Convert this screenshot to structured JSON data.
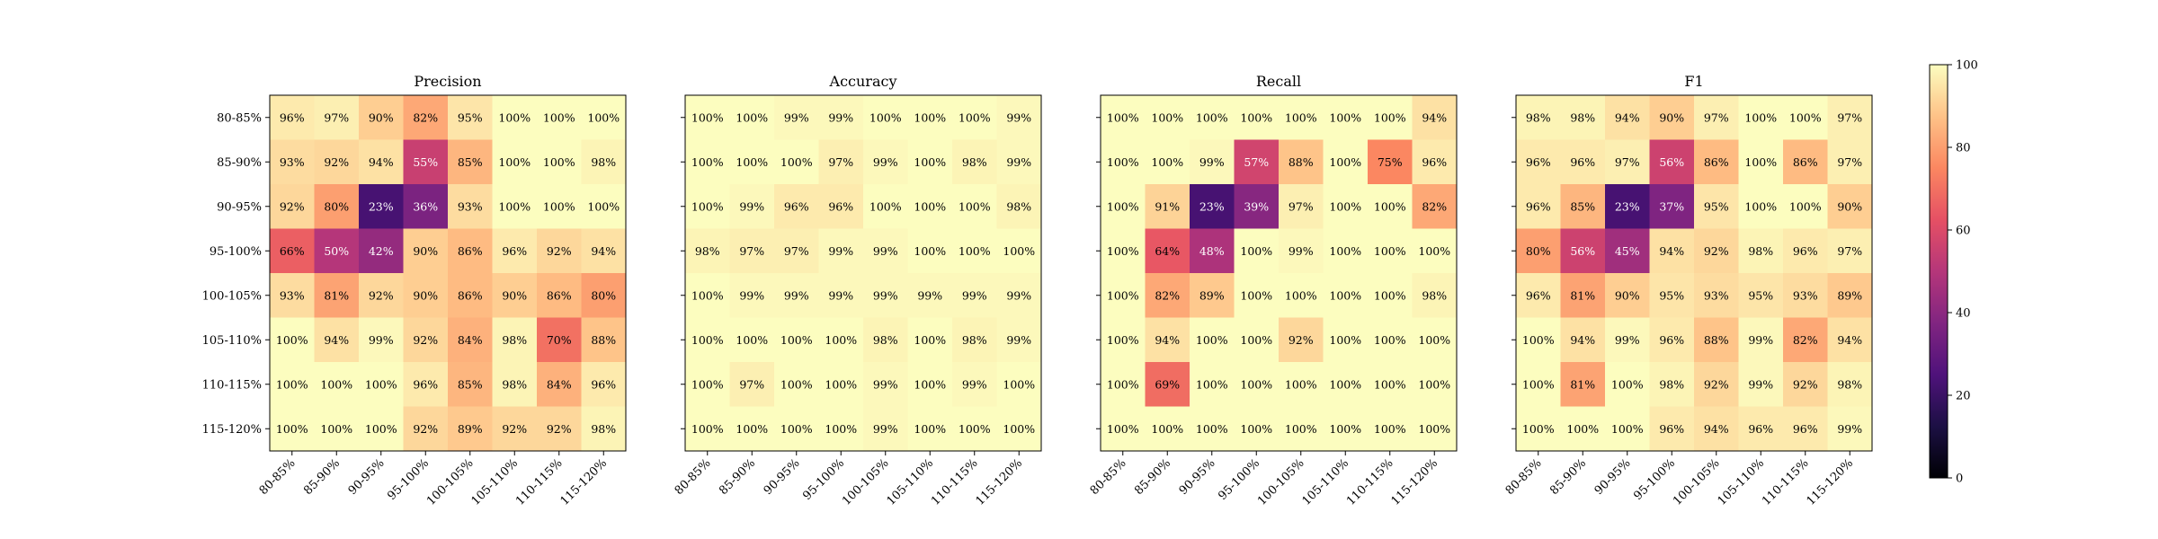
{
  "chart_data": {
    "type": "heatmap",
    "row_labels": [
      "80-85%",
      "85-90%",
      "90-95%",
      "95-100%",
      "100-105%",
      "105-110%",
      "110-115%",
      "115-120%"
    ],
    "col_labels": [
      "80-85%",
      "85-90%",
      "90-95%",
      "95-100%",
      "100-105%",
      "105-110%",
      "110-115%",
      "115-120%"
    ],
    "colormap": "magma",
    "value_range": [
      0,
      100
    ],
    "colorbar_ticks": [
      "0",
      "20",
      "40",
      "60",
      "80",
      "100"
    ],
    "panels": [
      {
        "title": "Precision",
        "values": [
          [
            96,
            97,
            90,
            82,
            95,
            100,
            100,
            100
          ],
          [
            93,
            92,
            94,
            55,
            85,
            100,
            100,
            98
          ],
          [
            92,
            80,
            23,
            36,
            93,
            100,
            100,
            100
          ],
          [
            66,
            50,
            42,
            90,
            86,
            96,
            92,
            94
          ],
          [
            93,
            81,
            92,
            90,
            86,
            90,
            86,
            80
          ],
          [
            100,
            94,
            99,
            92,
            84,
            98,
            70,
            88
          ],
          [
            100,
            100,
            100,
            96,
            85,
            98,
            84,
            96
          ],
          [
            100,
            100,
            100,
            92,
            89,
            92,
            92,
            98
          ]
        ]
      },
      {
        "title": "Accuracy",
        "values": [
          [
            100,
            100,
            99,
            99,
            100,
            100,
            100,
            99
          ],
          [
            100,
            100,
            100,
            97,
            99,
            100,
            98,
            99
          ],
          [
            100,
            99,
            96,
            96,
            100,
            100,
            100,
            98
          ],
          [
            98,
            97,
            97,
            99,
            99,
            100,
            100,
            100
          ],
          [
            100,
            99,
            99,
            99,
            99,
            99,
            99,
            99
          ],
          [
            100,
            100,
            100,
            100,
            98,
            100,
            98,
            99
          ],
          [
            100,
            97,
            100,
            100,
            99,
            100,
            99,
            100
          ],
          [
            100,
            100,
            100,
            100,
            99,
            100,
            100,
            100
          ]
        ]
      },
      {
        "title": "Recall",
        "values": [
          [
            100,
            100,
            100,
            100,
            100,
            100,
            100,
            94
          ],
          [
            100,
            100,
            99,
            57,
            88,
            100,
            75,
            96
          ],
          [
            100,
            91,
            23,
            39,
            97,
            100,
            100,
            82
          ],
          [
            100,
            64,
            48,
            100,
            99,
            100,
            100,
            100
          ],
          [
            100,
            82,
            89,
            100,
            100,
            100,
            100,
            98
          ],
          [
            100,
            94,
            100,
            100,
            92,
            100,
            100,
            100
          ],
          [
            100,
            69,
            100,
            100,
            100,
            100,
            100,
            100
          ],
          [
            100,
            100,
            100,
            100,
            100,
            100,
            100,
            100
          ]
        ]
      },
      {
        "title": "F1",
        "values": [
          [
            98,
            98,
            94,
            90,
            97,
            100,
            100,
            97
          ],
          [
            96,
            96,
            97,
            56,
            86,
            100,
            86,
            97
          ],
          [
            96,
            85,
            23,
            37,
            95,
            100,
            100,
            90
          ],
          [
            80,
            56,
            45,
            94,
            92,
            98,
            96,
            97
          ],
          [
            96,
            81,
            90,
            95,
            93,
            95,
            93,
            89
          ],
          [
            100,
            94,
            99,
            96,
            88,
            99,
            82,
            94
          ],
          [
            100,
            81,
            100,
            98,
            92,
            99,
            92,
            98
          ],
          [
            100,
            100,
            100,
            96,
            94,
            96,
            96,
            99
          ]
        ]
      }
    ]
  }
}
